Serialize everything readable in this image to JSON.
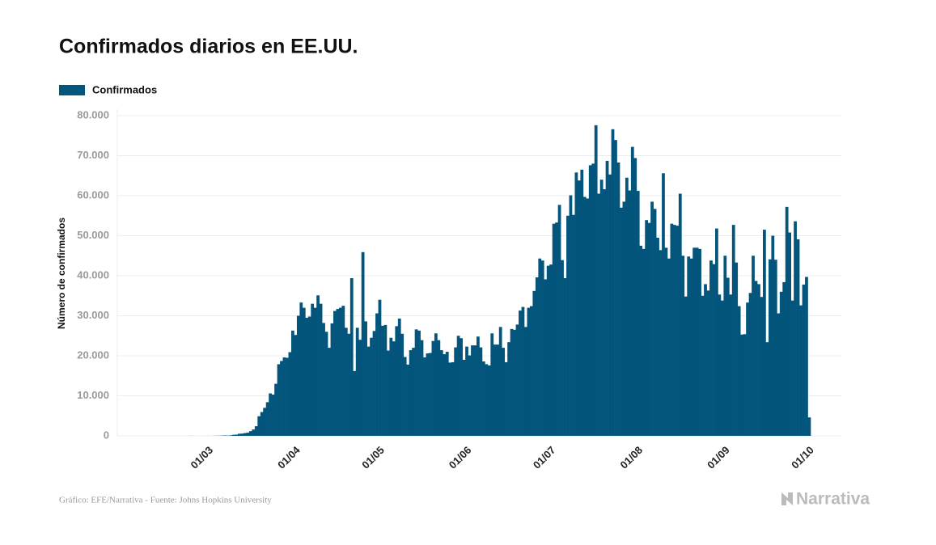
{
  "chart_data": {
    "type": "bar",
    "title": "Confirmados diarios en EE.UU.",
    "legend": "Confirmados",
    "y_label": "Número de confirmados",
    "source": "Gráfico: EFE/Narrativa - Fuente: Johns Hopkins University",
    "logo": "Narrativa",
    "color": "#03557c",
    "grid": true,
    "ylim": [
      0,
      80000
    ],
    "yticks": [
      0,
      {
        "value": 10000,
        "label": "10.000"
      },
      {
        "value": 20000,
        "label": "20.000"
      },
      {
        "value": 30000,
        "label": "30.000"
      },
      {
        "value": 40000,
        "label": "40.000"
      },
      {
        "value": 50000,
        "label": "50.000"
      },
      {
        "value": 60000,
        "label": "60.000"
      },
      {
        "value": 70000,
        "label": "70.000"
      },
      {
        "value": 80000,
        "label": "80.000"
      }
    ],
    "categories": [
      null,
      null,
      null,
      null,
      null,
      null,
      null,
      null,
      null,
      null,
      null,
      null,
      null,
      null,
      null,
      null,
      null,
      null,
      null,
      null,
      null,
      "01/03",
      null,
      null,
      null,
      null,
      null,
      null,
      null,
      null,
      null,
      null,
      null,
      null,
      null,
      null,
      null,
      null,
      null,
      null,
      null,
      null,
      null,
      null,
      null,
      null,
      null,
      null,
      null,
      null,
      null,
      null,
      "01/04",
      null,
      null,
      null,
      null,
      null,
      null,
      null,
      null,
      null,
      null,
      null,
      null,
      null,
      null,
      null,
      null,
      null,
      null,
      null,
      null,
      null,
      null,
      null,
      null,
      null,
      null,
      null,
      null,
      null,
      "01/05",
      null,
      null,
      null,
      null,
      null,
      null,
      null,
      null,
      null,
      null,
      null,
      null,
      null,
      null,
      null,
      null,
      null,
      null,
      null,
      null,
      null,
      null,
      null,
      null,
      null,
      null,
      null,
      null,
      null,
      null,
      "01/06",
      null,
      null,
      null,
      null,
      null,
      null,
      null,
      null,
      null,
      null,
      null,
      null,
      null,
      null,
      null,
      null,
      null,
      null,
      null,
      null,
      null,
      null,
      null,
      null,
      null,
      null,
      null,
      null,
      null,
      "01/07",
      null,
      null,
      null,
      null,
      null,
      null,
      null,
      null,
      null,
      null,
      null,
      null,
      null,
      null,
      null,
      null,
      null,
      null,
      null,
      null,
      null,
      null,
      null,
      null,
      null,
      null,
      null,
      null,
      null,
      null,
      "01/08",
      null,
      null,
      null,
      null,
      null,
      null,
      null,
      null,
      null,
      null,
      null,
      null,
      null,
      null,
      null,
      null,
      null,
      null,
      null,
      null,
      null,
      null,
      null,
      null,
      null,
      null,
      null,
      null,
      null,
      null,
      "01/09",
      null,
      null,
      null,
      null,
      null,
      null,
      null,
      null,
      null,
      null,
      null,
      null,
      null,
      null,
      null,
      null,
      null,
      null,
      null,
      null,
      null,
      null,
      null,
      null,
      null,
      null,
      null,
      null,
      null,
      "01/10"
    ],
    "values": [
      0,
      0,
      0,
      0,
      1,
      0,
      0,
      0,
      0,
      0,
      0,
      0,
      0,
      0,
      1,
      18,
      0,
      0,
      6,
      1,
      3,
      3,
      2,
      20,
      26,
      33,
      77,
      103,
      70,
      144,
      276,
      313,
      522,
      565,
      687,
      792,
      1183,
      1586,
      2405,
      4900,
      5950,
      6998,
      8400,
      10600,
      10300,
      13000,
      17900,
      18700,
      19600,
      19500,
      20900,
      26300,
      25200,
      30000,
      33300,
      32000,
      29500,
      29800,
      33000,
      32000,
      35100,
      33000,
      28200,
      26000,
      22000,
      28100,
      31200,
      31700,
      32000,
      32500,
      27000,
      25500,
      39400,
      16200,
      27000,
      24000,
      45900,
      28600,
      22300,
      24500,
      26200,
      30600,
      34000,
      27500,
      27700,
      21300,
      24500,
      23600,
      27400,
      29300,
      25500,
      19700,
      17800,
      21400,
      22000,
      26600,
      26300,
      23900,
      19600,
      20600,
      20700,
      23700,
      25600,
      23900,
      21400,
      20400,
      21000,
      18300,
      18400,
      22100,
      25000,
      24400,
      19000,
      22300,
      20100,
      22600,
      22600,
      24800,
      22100,
      18600,
      17900,
      17600,
      25600,
      22800,
      22800,
      27200,
      22000,
      18400,
      23400,
      26700,
      26500,
      27800,
      31300,
      32200,
      27200,
      32000,
      32400,
      36200,
      39600,
      44300,
      43800,
      39100,
      42500,
      42800,
      53000,
      53300,
      57700,
      43900,
      39400,
      55000,
      60100,
      55200,
      65800,
      63800,
      66500,
      59700,
      59300,
      67600,
      68000,
      77600,
      60500,
      64000,
      61600,
      68700,
      65300,
      76600,
      73900,
      68300,
      57000,
      58500,
      64500,
      61300,
      72200,
      69400,
      61200,
      47500,
      46700,
      53900,
      53200,
      58500,
      56700,
      49500,
      46400,
      65600,
      47000,
      44300,
      53000,
      52700,
      52500,
      60500,
      45000,
      34800,
      44800,
      44300,
      47000,
      47000,
      46700,
      35000,
      37900,
      36300,
      43800,
      42900,
      51800,
      35300,
      33800,
      45000,
      39500,
      35300,
      52700,
      43300,
      32400,
      25300,
      25400,
      33300,
      35700,
      45000,
      38700,
      37900,
      34700,
      51500,
      23400,
      44100,
      50000,
      44000,
      30600,
      36000,
      38400,
      57200,
      50800,
      33800,
      53600,
      49100,
      32600,
      37800,
      39700,
      4600
    ]
  }
}
